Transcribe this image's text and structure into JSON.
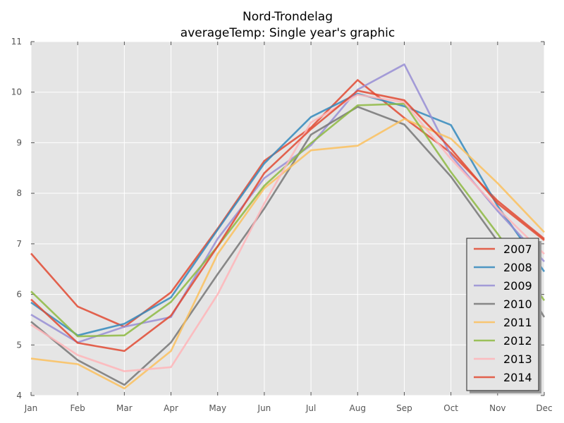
{
  "chart_data": {
    "type": "line",
    "title": "Nord-Trondelag",
    "subtitle": "averageTemp: Single year's graphic",
    "xlabel": "",
    "ylabel": "",
    "categories": [
      "Jan",
      "Feb",
      "Mar",
      "Apr",
      "May",
      "Jun",
      "Jul",
      "Aug",
      "Sep",
      "Oct",
      "Nov",
      "Dec"
    ],
    "ylim": [
      4,
      11
    ],
    "yticks": [
      "4",
      "5",
      "6",
      "7",
      "8",
      "9",
      "10",
      "11"
    ],
    "grid": true,
    "legend_position": "lower-right",
    "series": [
      {
        "name": "2007",
        "color": "#E24A33",
        "values": [
          6.81,
          5.76,
          5.36,
          6.04,
          7.3,
          8.64,
          9.3,
          10.24,
          9.49,
          8.8,
          7.85,
          7.1
        ]
      },
      {
        "name": "2008",
        "color": "#348ABD",
        "values": [
          5.84,
          5.19,
          5.42,
          5.94,
          7.28,
          8.59,
          9.51,
          9.97,
          9.72,
          9.35,
          7.75,
          6.45
        ]
      },
      {
        "name": "2009",
        "color": "#988ED5",
        "values": [
          5.6,
          5.05,
          5.36,
          5.55,
          7.1,
          8.3,
          8.95,
          10.05,
          10.55,
          8.75,
          7.65,
          6.65
        ]
      },
      {
        "name": "2010",
        "color": "#777777",
        "values": [
          5.46,
          4.7,
          4.21,
          5.05,
          6.4,
          7.7,
          9.16,
          9.71,
          9.36,
          8.33,
          7.05,
          5.55
        ]
      },
      {
        "name": "2011",
        "color": "#FBC15E",
        "values": [
          4.73,
          4.62,
          4.14,
          4.88,
          6.8,
          8.1,
          8.85,
          8.94,
          9.47,
          9.08,
          8.2,
          7.23
        ]
      },
      {
        "name": "2012",
        "color": "#8EBA42",
        "values": [
          6.06,
          5.17,
          5.19,
          5.85,
          6.95,
          8.15,
          8.99,
          9.74,
          9.77,
          8.42,
          7.2,
          5.88
        ]
      },
      {
        "name": "2013",
        "color": "#FFB5B8",
        "values": [
          5.4,
          4.8,
          4.48,
          4.56,
          6.0,
          7.8,
          9.4,
          9.95,
          9.8,
          8.68,
          7.7,
          6.8
        ]
      },
      {
        "name": "2014",
        "color": "#E24A33",
        "values": [
          5.9,
          5.04,
          4.88,
          5.58,
          6.95,
          8.4,
          9.27,
          10.03,
          9.84,
          8.88,
          7.8,
          7.07
        ]
      }
    ]
  }
}
